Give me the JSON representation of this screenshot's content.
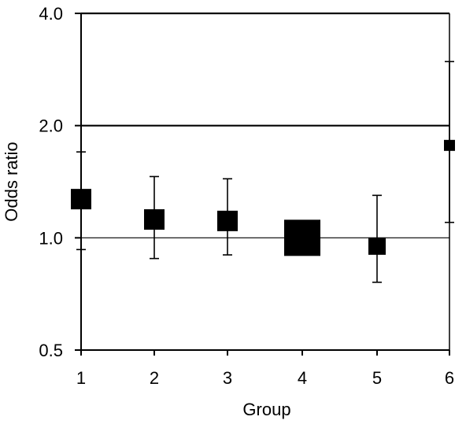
{
  "chart_data": {
    "type": "scatter",
    "xlabel": "Group",
    "ylabel": "Odds ratio",
    "y_scale": "log2",
    "ylim": [
      0.5,
      4.0
    ],
    "yticks": [
      {
        "value": 0.5,
        "label": "0.5"
      },
      {
        "value": 1.0,
        "label": "1.0"
      },
      {
        "value": 2.0,
        "label": "2.0"
      },
      {
        "value": 4.0,
        "label": "4.0"
      }
    ],
    "categories": [
      "1",
      "2",
      "3",
      "4",
      "5",
      "6"
    ],
    "points": [
      {
        "group": "1",
        "odds_ratio": 1.27,
        "ci_low": 0.93,
        "ci_high": 1.7,
        "weight": 26
      },
      {
        "group": "2",
        "odds_ratio": 1.12,
        "ci_low": 0.88,
        "ci_high": 1.46,
        "weight": 26
      },
      {
        "group": "3",
        "odds_ratio": 1.11,
        "ci_low": 0.9,
        "ci_high": 1.44,
        "weight": 26
      },
      {
        "group": "4",
        "odds_ratio": 1.0,
        "ci_low": 0.93,
        "ci_high": 1.07,
        "weight": 46
      },
      {
        "group": "5",
        "odds_ratio": 0.95,
        "ci_low": 0.76,
        "ci_high": 1.3,
        "weight": 22
      },
      {
        "group": "6",
        "odds_ratio": 1.77,
        "ci_low": 1.1,
        "ci_high": 2.97,
        "weight": 14
      }
    ],
    "reference_lines": [
      1.0,
      2.0,
      4.0
    ],
    "grid": false,
    "legend": "none",
    "marker": "square",
    "color": "#000000"
  }
}
